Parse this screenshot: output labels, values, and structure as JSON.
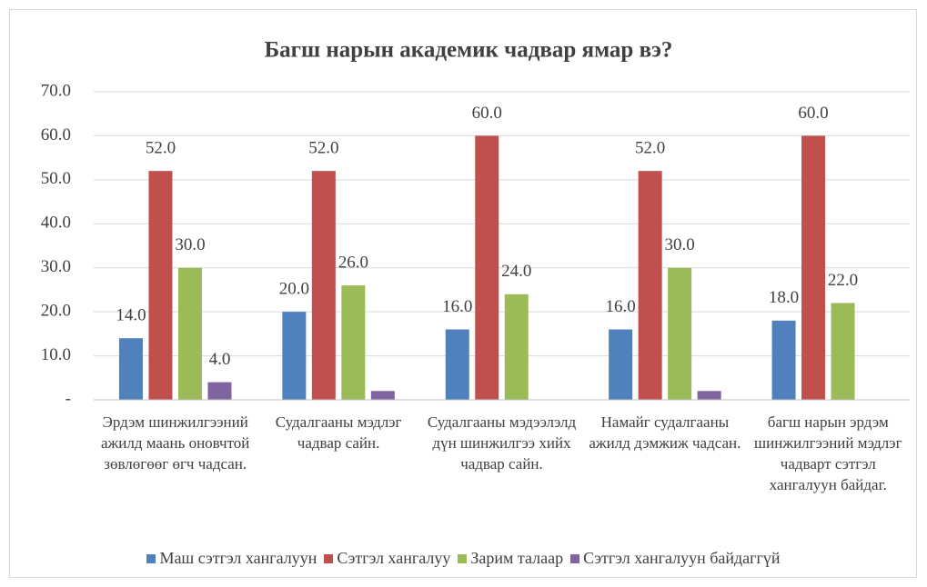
{
  "chart_data": {
    "type": "bar",
    "title": "Багш нарын академик чадвар ямар вэ?",
    "categories": [
      "Эрдэм шинжилгээний ажилд маань оновчтой зөвлөгөөг өгч чадсан.",
      "Судалгааны мэдлэг чадвар сайн.",
      "Судалгааны мэдээлэлд дүн шинжилгээ хийх чадвар сайн.",
      "Намайг судалгааны ажилд дэмжиж чадсан.",
      "багш нарын эрдэм шинжилгээний мэдлэг чадварт сэтгэл хангалуун байдаг."
    ],
    "series": [
      {
        "name": "Маш сэтгэл хангалуун",
        "color": "#4f81bd",
        "values": [
          14,
          20,
          16,
          16,
          18
        ],
        "value_labels": [
          "14.0",
          "20.0",
          "16.0",
          "16.0",
          "18.0"
        ]
      },
      {
        "name": "Сэтгэл хангалуу",
        "color": "#c0504d",
        "values": [
          52,
          52,
          60,
          52,
          60
        ],
        "value_labels": [
          "52.0",
          "52.0",
          "60.0",
          "52.0",
          "60.0"
        ]
      },
      {
        "name": "Зарим талаар",
        "color": "#9bbb59",
        "values": [
          30,
          26,
          24,
          30,
          22
        ],
        "value_labels": [
          "30.0",
          "26.0",
          "24.0",
          "30.0",
          "22.0"
        ]
      },
      {
        "name": "Сэтгэл хангалуун байдаггүй",
        "color": "#8064a2",
        "values": [
          4,
          2,
          0,
          2,
          0
        ],
        "value_labels": [
          "4.0",
          null,
          null,
          null,
          null
        ]
      }
    ],
    "ylim": [
      0,
      70
    ],
    "yticks": [
      {
        "value": 0,
        "label": "-"
      },
      {
        "value": 10,
        "label": "10.0"
      },
      {
        "value": 20,
        "label": "20.0"
      },
      {
        "value": 30,
        "label": "30.0"
      },
      {
        "value": 40,
        "label": "40.0"
      },
      {
        "value": 50,
        "label": "50.0"
      },
      {
        "value": 60,
        "label": "60.0"
      },
      {
        "value": 70,
        "label": "70.0"
      }
    ],
    "grid": true,
    "legend": "bottom"
  }
}
